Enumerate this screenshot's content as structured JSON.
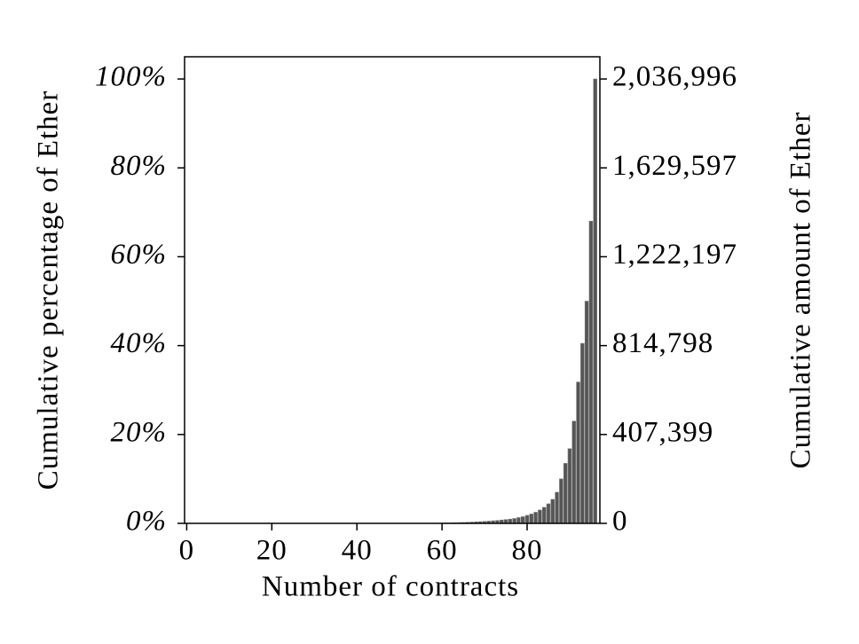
{
  "chart_data": {
    "type": "bar",
    "xlabel": "Number of contracts",
    "ylabel": "Cumulative percentage of Ether",
    "y2label": "Cumulative amount of Ether",
    "x": [
      0,
      1,
      2,
      3,
      4,
      5,
      6,
      7,
      8,
      9,
      10,
      11,
      12,
      13,
      14,
      15,
      16,
      17,
      18,
      19,
      20,
      21,
      22,
      23,
      24,
      25,
      26,
      27,
      28,
      29,
      30,
      31,
      32,
      33,
      34,
      35,
      36,
      37,
      38,
      39,
      40,
      41,
      42,
      43,
      44,
      45,
      46,
      47,
      48,
      49,
      50,
      51,
      52,
      53,
      54,
      55,
      56,
      57,
      58,
      59,
      60,
      61,
      62,
      63,
      64,
      65,
      66,
      67,
      68,
      69,
      70,
      71,
      72,
      73,
      74,
      75,
      76,
      77,
      78,
      79,
      80,
      81,
      82,
      83,
      84,
      85,
      86,
      87,
      88,
      89,
      90,
      91,
      92,
      93,
      94,
      95,
      96
    ],
    "values": [
      0,
      0,
      0,
      0,
      0,
      0,
      0,
      0,
      0,
      0,
      0,
      0,
      0,
      0,
      0,
      0,
      0,
      0,
      0,
      0,
      0,
      0,
      0,
      0,
      0,
      0,
      0,
      0,
      0,
      0,
      0,
      0,
      0,
      0,
      0,
      0,
      0,
      0,
      0,
      0,
      0,
      0,
      0,
      0,
      0,
      0,
      0,
      0,
      0,
      0,
      0,
      0,
      0,
      0,
      0,
      0,
      0.01,
      0.02,
      0.03,
      0.05,
      0.07,
      0.09,
      0.11,
      0.14,
      0.17,
      0.2,
      0.24,
      0.28,
      0.33,
      0.38,
      0.44,
      0.5,
      0.58,
      0.65,
      0.75,
      0.85,
      0.95,
      1.1,
      1.3,
      1.5,
      1.8,
      2.1,
      2.5,
      3.0,
      3.6,
      4.4,
      5.4,
      7,
      10,
      13.5,
      16.8,
      23,
      31.8,
      40.5,
      50,
      68,
      100
    ],
    "color": "#555555",
    "xlim": [
      -0.5,
      97.1
    ],
    "xticks": [
      0,
      20,
      40,
      60,
      80
    ],
    "ylim": [
      0,
      105
    ],
    "yticks": [
      {
        "value": 0,
        "label": "0%"
      },
      {
        "value": 20,
        "label": "20%"
      },
      {
        "value": 40,
        "label": "40%"
      },
      {
        "value": 60,
        "label": "60%"
      },
      {
        "value": 80,
        "label": "80%"
      },
      {
        "value": 100,
        "label": "100%"
      }
    ],
    "y2lim": [
      0,
      2138846
    ],
    "y2ticks": [
      0,
      {
        "value": 407399,
        "label": "407,399"
      },
      {
        "value": 814798,
        "label": "814,798"
      },
      {
        "value": 1222197,
        "label": "1,222,197"
      },
      {
        "value": 1629597,
        "label": "1,629,597"
      },
      {
        "value": 2036996,
        "label": "2,036,996"
      }
    ]
  }
}
